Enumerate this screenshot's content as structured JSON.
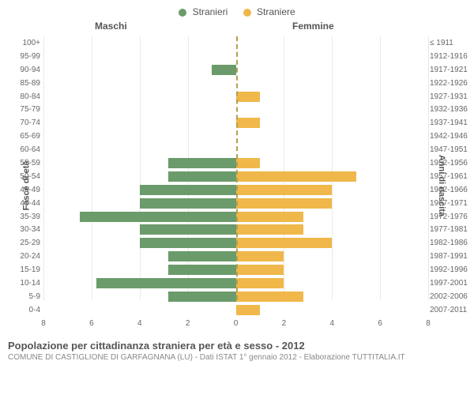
{
  "legend": {
    "male": {
      "label": "Stranieri",
      "color": "#6b9b6b"
    },
    "female": {
      "label": "Straniere",
      "color": "#f0b84a"
    }
  },
  "headers": {
    "left": "Maschi",
    "right": "Femmine"
  },
  "y_axis_left_title": "Fasce di età",
  "y_axis_right_title": "Anni di nascita",
  "chart": {
    "type": "population-pyramid",
    "xmax": 8,
    "x_ticks": [
      8,
      6,
      4,
      2,
      0,
      2,
      4,
      6,
      8
    ],
    "background_color": "#ffffff",
    "grid_color": "#e8e8e8",
    "center_line_color": "#b0a050",
    "rows": [
      {
        "age": "100+",
        "year": "≤ 1911",
        "m": 0,
        "f": 0
      },
      {
        "age": "95-99",
        "year": "1912-1916",
        "m": 0,
        "f": 0
      },
      {
        "age": "90-94",
        "year": "1917-1921",
        "m": 1,
        "f": 0
      },
      {
        "age": "85-89",
        "year": "1922-1926",
        "m": 0,
        "f": 0
      },
      {
        "age": "80-84",
        "year": "1927-1931",
        "m": 0,
        "f": 1
      },
      {
        "age": "75-79",
        "year": "1932-1936",
        "m": 0,
        "f": 0
      },
      {
        "age": "70-74",
        "year": "1937-1941",
        "m": 0,
        "f": 1
      },
      {
        "age": "65-69",
        "year": "1942-1946",
        "m": 0,
        "f": 0
      },
      {
        "age": "60-64",
        "year": "1947-1951",
        "m": 0,
        "f": 0
      },
      {
        "age": "55-59",
        "year": "1952-1956",
        "m": 2.8,
        "f": 1
      },
      {
        "age": "50-54",
        "year": "1957-1961",
        "m": 2.8,
        "f": 5
      },
      {
        "age": "45-49",
        "year": "1962-1966",
        "m": 4,
        "f": 4
      },
      {
        "age": "40-44",
        "year": "1967-1971",
        "m": 4,
        "f": 4
      },
      {
        "age": "35-39",
        "year": "1972-1976",
        "m": 6.5,
        "f": 2.8
      },
      {
        "age": "30-34",
        "year": "1977-1981",
        "m": 4,
        "f": 2.8
      },
      {
        "age": "25-29",
        "year": "1982-1986",
        "m": 4,
        "f": 4
      },
      {
        "age": "20-24",
        "year": "1987-1991",
        "m": 2.8,
        "f": 2
      },
      {
        "age": "15-19",
        "year": "1992-1996",
        "m": 2.8,
        "f": 2
      },
      {
        "age": "10-14",
        "year": "1997-2001",
        "m": 5.8,
        "f": 2
      },
      {
        "age": "5-9",
        "year": "2002-2006",
        "m": 2.8,
        "f": 2.8
      },
      {
        "age": "0-4",
        "year": "2007-2011",
        "m": 0,
        "f": 1
      }
    ]
  },
  "footer": {
    "title": "Popolazione per cittadinanza straniera per età e sesso - 2012",
    "subtitle": "COMUNE DI CASTIGLIONE DI GARFAGNANA (LU) - Dati ISTAT 1° gennaio 2012 - Elaborazione TUTTITALIA.IT"
  }
}
